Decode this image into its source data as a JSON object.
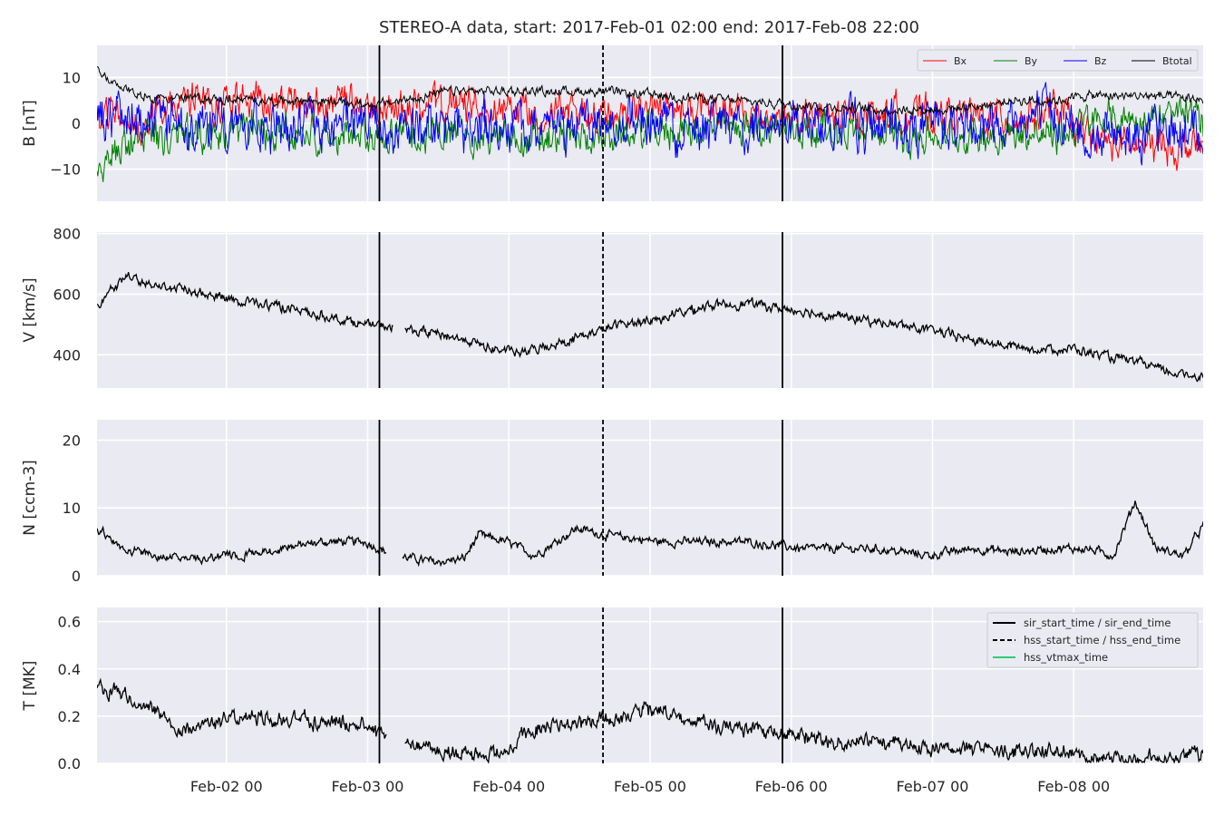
{
  "chart_data": {
    "type": "line",
    "title": "STEREO-A data, start: 2017-Feb-01 02:00  end: 2017-Feb-08 22:00",
    "x_range": [
      "2017-02-01 02:00",
      "2017-02-08 22:00"
    ],
    "x_tick_labels": [
      "Feb-02 00",
      "Feb-03 00",
      "Feb-04 00",
      "Feb-05 00",
      "Feb-06 00",
      "Feb-07 00",
      "Feb-08 00"
    ],
    "x_ticks": [
      "2017-02-02 00:00",
      "2017-02-03 00:00",
      "2017-02-04 00:00",
      "2017-02-05 00:00",
      "2017-02-06 00:00",
      "2017-02-07 00:00",
      "2017-02-08 00:00"
    ],
    "grid": true,
    "event_lines": [
      {
        "name": "sir_start_time / sir_end_time",
        "style": "solid",
        "color": "#000000",
        "times": [
          "2017-02-03 02:00",
          "2017-02-05 22:30"
        ]
      },
      {
        "name": "hss_start_time / hss_end_time",
        "style": "dashed",
        "color": "#000000",
        "times": [
          "2017-02-04 16:00"
        ]
      },
      {
        "name": "hss_vtmax_time",
        "style": "solid",
        "color": "#2ecc71",
        "times": []
      }
    ],
    "event_legend_placement": "top-right of T panel",
    "panels": [
      {
        "id": "B",
        "ylabel": "B [nT]",
        "ylim": [
          -17,
          17
        ],
        "yticks": [
          -10,
          0,
          10
        ],
        "legend_placement": "top-right",
        "series": [
          {
            "name": "Bx",
            "color": "#ff0000",
            "keypoints": [
              [
                0,
                -1
              ],
              [
                0.1,
                3
              ],
              [
                0.3,
                -2
              ],
              [
                0.4,
                4
              ],
              [
                1,
                5
              ],
              [
                1.5,
                4
              ],
              [
                2,
                3
              ],
              [
                2.5,
                4
              ],
              [
                3,
                3
              ],
              [
                3.5,
                2
              ],
              [
                4,
                3
              ],
              [
                4.5,
                2
              ],
              [
                5,
                1
              ],
              [
                5.5,
                2
              ],
              [
                6,
                2
              ],
              [
                6.5,
                1
              ],
              [
                6.8,
                3
              ],
              [
                7,
                -3
              ],
              [
                7.3,
                -5
              ],
              [
                7.6,
                -5
              ],
              [
                7.85,
                -5
              ]
            ],
            "noise": 3
          },
          {
            "name": "By",
            "color": "#008000",
            "keypoints": [
              [
                0,
                -12
              ],
              [
                0.15,
                -6
              ],
              [
                0.4,
                -3
              ],
              [
                1,
                -2
              ],
              [
                1.5,
                -2
              ],
              [
                2,
                -3
              ],
              [
                2.5,
                -2
              ],
              [
                3,
                -4
              ],
              [
                3.5,
                -3
              ],
              [
                4,
                -2
              ],
              [
                4.5,
                -1
              ],
              [
                5,
                -1
              ],
              [
                5.5,
                -2
              ],
              [
                6,
                -3
              ],
              [
                6.5,
                -2
              ],
              [
                6.8,
                -3
              ],
              [
                7.0,
                0
              ],
              [
                7.3,
                1
              ],
              [
                7.6,
                1
              ],
              [
                7.8,
                2
              ],
              [
                7.85,
                -3
              ]
            ],
            "noise": 3
          },
          {
            "name": "Bz",
            "color": "#0000ff",
            "keypoints": [
              [
                0,
                2
              ],
              [
                0.4,
                0
              ],
              [
                1,
                -1
              ],
              [
                1.5,
                0
              ],
              [
                2,
                0
              ],
              [
                2.5,
                -1
              ],
              [
                3,
                -2
              ],
              [
                3.5,
                0
              ],
              [
                4,
                0
              ],
              [
                4.5,
                -1
              ],
              [
                5,
                0
              ],
              [
                5.5,
                -1
              ],
              [
                6,
                0
              ],
              [
                6.5,
                1
              ],
              [
                6.8,
                2
              ],
              [
                7.0,
                -3
              ],
              [
                7.3,
                -2
              ],
              [
                7.6,
                -2
              ],
              [
                7.85,
                -2
              ]
            ],
            "noise": 4
          },
          {
            "name": "Btotal",
            "color": "#000000",
            "keypoints": [
              [
                0,
                12
              ],
              [
                0.1,
                9
              ],
              [
                0.3,
                6
              ],
              [
                1,
                5
              ],
              [
                1.5,
                5
              ],
              [
                2,
                4
              ],
              [
                2.5,
                7
              ],
              [
                3,
                7
              ],
              [
                3.5,
                7
              ],
              [
                4,
                6
              ],
              [
                4.5,
                5
              ],
              [
                5,
                4
              ],
              [
                5.5,
                3
              ],
              [
                6,
                3
              ],
              [
                6.3,
                4
              ],
              [
                6.5,
                5
              ],
              [
                6.8,
                5
              ],
              [
                7.0,
                6
              ],
              [
                7.5,
                6
              ],
              [
                7.85,
                5
              ]
            ],
            "noise": 0.8
          }
        ]
      },
      {
        "id": "V",
        "ylabel": "V [km/s]",
        "ylim": [
          290,
          805
        ],
        "yticks": [
          400,
          600,
          800
        ],
        "series": [
          {
            "name": "V",
            "color": "#000000",
            "keypoints": [
              [
                0,
                560
              ],
              [
                0.1,
                610
              ],
              [
                0.2,
                660
              ],
              [
                0.35,
                640
              ],
              [
                0.5,
                620
              ],
              [
                0.8,
                600
              ],
              [
                1.0,
                580
              ],
              [
                1.3,
                560
              ],
              [
                1.6,
                530
              ],
              [
                1.9,
                500
              ],
              [
                2.1,
                490
              ],
              [
                2.4,
                470
              ],
              [
                2.6,
                450
              ],
              [
                2.8,
                420
              ],
              [
                3.0,
                405
              ],
              [
                3.2,
                430
              ],
              [
                3.5,
                470
              ],
              [
                3.7,
                500
              ],
              [
                4.0,
                520
              ],
              [
                4.3,
                560
              ],
              [
                4.6,
                570
              ],
              [
                4.9,
                550
              ],
              [
                5.2,
                530
              ],
              [
                5.5,
                510
              ],
              [
                5.8,
                490
              ],
              [
                6.0,
                470
              ],
              [
                6.3,
                440
              ],
              [
                6.6,
                420
              ],
              [
                6.9,
                420
              ],
              [
                7.2,
                390
              ],
              [
                7.4,
                370
              ],
              [
                7.6,
                340
              ],
              [
                7.85,
                330
              ]
            ],
            "noise": 12,
            "gaps": [
              [
                2.1,
                2.18
              ]
            ]
          }
        ]
      },
      {
        "id": "N",
        "ylabel": "N [ccm-3]",
        "ylim": [
          0,
          23
        ],
        "yticks": [
          0,
          10,
          20
        ],
        "series": [
          {
            "name": "N",
            "color": "#000000",
            "keypoints": [
              [
                0,
                7
              ],
              [
                0.2,
                4
              ],
              [
                0.4,
                3
              ],
              [
                0.7,
                2.5
              ],
              [
                1.0,
                3
              ],
              [
                1.3,
                4
              ],
              [
                1.6,
                5
              ],
              [
                1.9,
                5
              ],
              [
                2.1,
                3
              ],
              [
                2.4,
                2
              ],
              [
                2.6,
                2.5
              ],
              [
                2.7,
                6
              ],
              [
                2.9,
                5
              ],
              [
                3.1,
                3
              ],
              [
                3.4,
                7
              ],
              [
                3.6,
                6
              ],
              [
                4.0,
                5
              ],
              [
                4.3,
                5
              ],
              [
                4.6,
                5
              ],
              [
                5.0,
                4
              ],
              [
                5.5,
                4
              ],
              [
                5.9,
                3
              ],
              [
                6.2,
                4
              ],
              [
                6.5,
                3.5
              ],
              [
                6.8,
                4
              ],
              [
                7.0,
                4
              ],
              [
                7.2,
                3
              ],
              [
                7.35,
                11
              ],
              [
                7.5,
                4
              ],
              [
                7.7,
                3
              ],
              [
                7.85,
                8
              ]
            ],
            "noise": 0.5,
            "gaps": [
              [
                2.05,
                2.16
              ]
            ]
          }
        ]
      },
      {
        "id": "T",
        "ylabel": "T [MK]",
        "ylim": [
          0.0,
          0.66
        ],
        "yticks": [
          0.0,
          0.2,
          0.4,
          0.6
        ],
        "series": [
          {
            "name": "T",
            "color": "#000000",
            "keypoints": [
              [
                0,
                0.32
              ],
              [
                0.2,
                0.3
              ],
              [
                0.4,
                0.22
              ],
              [
                0.6,
                0.14
              ],
              [
                0.8,
                0.17
              ],
              [
                1.0,
                0.2
              ],
              [
                1.3,
                0.19
              ],
              [
                1.6,
                0.18
              ],
              [
                1.9,
                0.15
              ],
              [
                2.1,
                0.1
              ],
              [
                2.3,
                0.07
              ],
              [
                2.5,
                0.05
              ],
              [
                2.7,
                0.04
              ],
              [
                2.9,
                0.05
              ],
              [
                3.1,
                0.15
              ],
              [
                3.4,
                0.17
              ],
              [
                3.7,
                0.2
              ],
              [
                3.9,
                0.23
              ],
              [
                4.1,
                0.2
              ],
              [
                4.3,
                0.17
              ],
              [
                4.6,
                0.14
              ],
              [
                4.9,
                0.12
              ],
              [
                5.2,
                0.1
              ],
              [
                5.5,
                0.09
              ],
              [
                5.9,
                0.07
              ],
              [
                6.2,
                0.06
              ],
              [
                6.5,
                0.05
              ],
              [
                6.8,
                0.06
              ],
              [
                7.0,
                0.03
              ],
              [
                7.3,
                0.02
              ],
              [
                7.6,
                0.02
              ],
              [
                7.85,
                0.04
              ]
            ],
            "noise": 0.025,
            "gaps": [
              [
                2.05,
                2.18
              ]
            ]
          }
        ]
      }
    ]
  }
}
